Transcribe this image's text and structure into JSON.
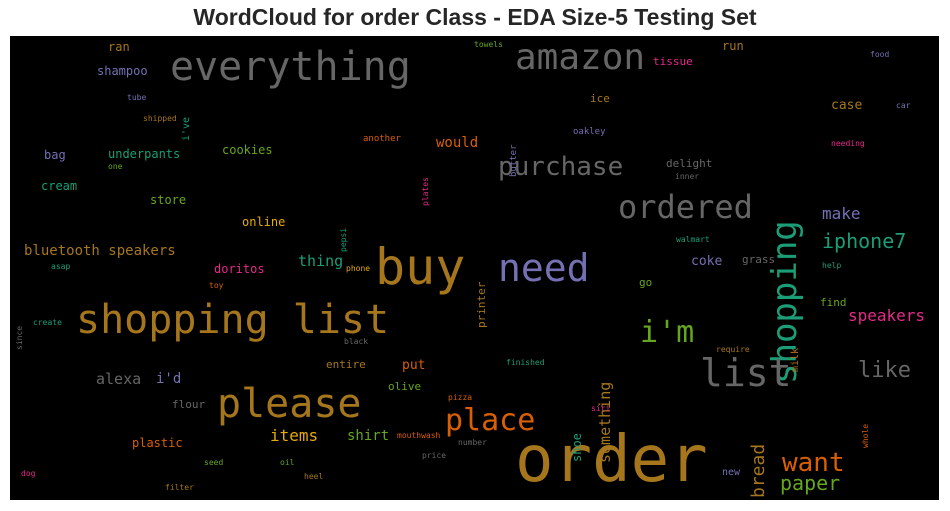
{
  "title": "WordCloud for order Class - EDA Size-5 Testing Set",
  "chart_data": {
    "type": "wordcloud",
    "background": "#000000",
    "words": [
      {
        "text": "order",
        "color": "#a6761d"
      },
      {
        "text": "shopping list",
        "color": "#a6761d"
      },
      {
        "text": "buy",
        "color": "#a6761d"
      },
      {
        "text": "everything",
        "color": "#666666"
      },
      {
        "text": "need",
        "color": "#7570b3"
      },
      {
        "text": "please",
        "color": "#a6761d"
      },
      {
        "text": "amazon",
        "color": "#666666"
      },
      {
        "text": "shopping",
        "color": "#1b9e77"
      },
      {
        "text": "list",
        "color": "#666666"
      },
      {
        "text": "ordered",
        "color": "#666666"
      },
      {
        "text": "i'm",
        "color": "#66a61e"
      },
      {
        "text": "place",
        "color": "#d95f02"
      },
      {
        "text": "purchase",
        "color": "#666666"
      },
      {
        "text": "want",
        "color": "#d95f02"
      },
      {
        "text": "like",
        "color": "#666666"
      },
      {
        "text": "iphone7",
        "color": "#1b9e77"
      },
      {
        "text": "paper",
        "color": "#66a61e"
      },
      {
        "text": "bread",
        "color": "#a6761d"
      },
      {
        "text": "speakers",
        "color": "#e7298a"
      },
      {
        "text": "make",
        "color": "#7570b3"
      },
      {
        "text": "something",
        "color": "#a6761d"
      },
      {
        "text": "items",
        "color": "#e6ab02"
      },
      {
        "text": "alexa",
        "color": "#666666"
      },
      {
        "text": "thing",
        "color": "#1b9e77"
      },
      {
        "text": "bluetooth speakers",
        "color": "#a6761d"
      },
      {
        "text": "would",
        "color": "#d95f02"
      },
      {
        "text": "i'd",
        "color": "#7570b3"
      },
      {
        "text": "shirt",
        "color": "#66a61e"
      },
      {
        "text": "coke",
        "color": "#7570b3"
      },
      {
        "text": "case",
        "color": "#a6761d"
      },
      {
        "text": "put",
        "color": "#d95f02"
      },
      {
        "text": "shoe",
        "color": "#1b9e77"
      },
      {
        "text": "run",
        "color": "#a6761d"
      },
      {
        "text": "ran",
        "color": "#a6761d"
      },
      {
        "text": "shampoo",
        "color": "#7570b3"
      },
      {
        "text": "underpants",
        "color": "#1b9e77"
      },
      {
        "text": "cookies",
        "color": "#66a61e"
      },
      {
        "text": "online",
        "color": "#e6ab02"
      },
      {
        "text": "store",
        "color": "#66a61e"
      },
      {
        "text": "cream",
        "color": "#1b9e77"
      },
      {
        "text": "bag",
        "color": "#7570b3"
      },
      {
        "text": "doritos",
        "color": "#e7298a"
      },
      {
        "text": "plastic",
        "color": "#d95f02"
      },
      {
        "text": "flour",
        "color": "#666666"
      },
      {
        "text": "entire",
        "color": "#a6761d"
      },
      {
        "text": "olive",
        "color": "#66a61e"
      },
      {
        "text": "printer",
        "color": "#a6761d"
      },
      {
        "text": "delight",
        "color": "#666666"
      },
      {
        "text": "tissue",
        "color": "#e7298a"
      },
      {
        "text": "ice",
        "color": "#a6761d"
      },
      {
        "text": "grass",
        "color": "#666666"
      },
      {
        "text": "go",
        "color": "#66a61e"
      },
      {
        "text": "find",
        "color": "#66a61e"
      },
      {
        "text": "milk",
        "color": "#a6761d"
      },
      {
        "text": "new",
        "color": "#7570b3"
      },
      {
        "text": "towels",
        "color": "#66a61e"
      },
      {
        "text": "food",
        "color": "#7570b3"
      },
      {
        "text": "car",
        "color": "#7570b3"
      },
      {
        "text": "tube",
        "color": "#7570b3"
      },
      {
        "text": "i've",
        "color": "#1b9e77"
      },
      {
        "text": "shipped",
        "color": "#a6761d"
      },
      {
        "text": "butter",
        "color": "#7570b3"
      },
      {
        "text": "oakley",
        "color": "#7570b3"
      },
      {
        "text": "another",
        "color": "#d95f02"
      },
      {
        "text": "needing",
        "color": "#e7298a"
      },
      {
        "text": "one",
        "color": "#66a61e"
      },
      {
        "text": "plates",
        "color": "#e7298a"
      },
      {
        "text": "inner",
        "color": "#666666"
      },
      {
        "text": "pepsi",
        "color": "#1b9e77"
      },
      {
        "text": "walmart",
        "color": "#1b9e77"
      },
      {
        "text": "asap",
        "color": "#1b9e77"
      },
      {
        "text": "phone",
        "color": "#e6ab02"
      },
      {
        "text": "help",
        "color": "#1b9e77"
      },
      {
        "text": "toy",
        "color": "#d95f02"
      },
      {
        "text": "since",
        "color": "#666666"
      },
      {
        "text": "create",
        "color": "#1b9e77"
      },
      {
        "text": "black",
        "color": "#666666"
      },
      {
        "text": "require",
        "color": "#a6761d"
      },
      {
        "text": "finished",
        "color": "#1b9e77"
      },
      {
        "text": "pizza",
        "color": "#d95f02"
      },
      {
        "text": "siri",
        "color": "#e7298a"
      },
      {
        "text": "whole",
        "color": "#d95f02"
      },
      {
        "text": "mouthwash",
        "color": "#d95f02"
      },
      {
        "text": "number",
        "color": "#666666"
      },
      {
        "text": "seed",
        "color": "#66a61e"
      },
      {
        "text": "oil",
        "color": "#66a61e"
      },
      {
        "text": "price",
        "color": "#666666"
      },
      {
        "text": "heel",
        "color": "#a6761d"
      },
      {
        "text": "dog",
        "color": "#e7298a"
      },
      {
        "text": "filter",
        "color": "#a6761d"
      }
    ]
  }
}
